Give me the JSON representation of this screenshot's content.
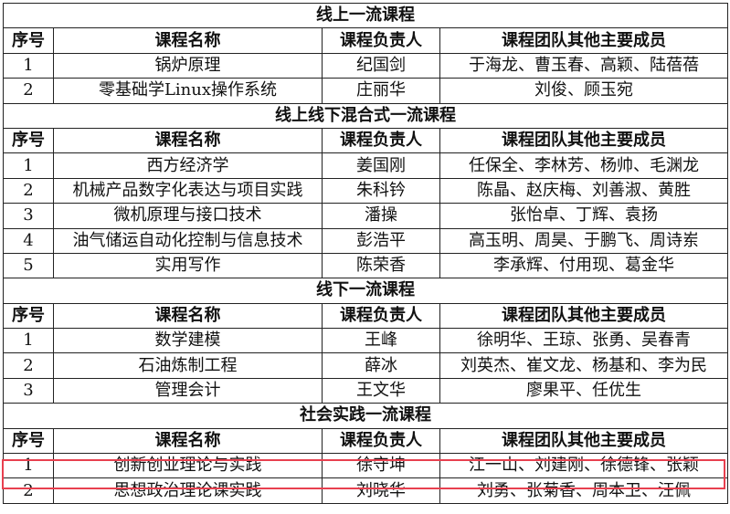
{
  "headers": {
    "no": "序号",
    "name": "课程名称",
    "lead": "课程负责人",
    "members": "课程团队其他主要成员"
  },
  "highlight_color": "#e8404f",
  "sections": [
    {
      "title": "线上一流课程",
      "rows": [
        {
          "no": "1",
          "name": "锅炉原理",
          "lead": "纪国剑",
          "members": "于海龙、曹玉春、高颖、陆蓓蓓"
        },
        {
          "no": "2",
          "name": "零基础学Linux操作系统",
          "lead": "庄丽华",
          "members": "刘俊、顾玉宛"
        }
      ]
    },
    {
      "title": "线上线下混合式一流课程",
      "rows": [
        {
          "no": "1",
          "name": "西方经济学",
          "lead": "姜国刚",
          "members": "任保全、李林芳、杨帅、毛渊龙"
        },
        {
          "no": "2",
          "name": "机械产品数字化表达与项目实践",
          "lead": "朱科钤",
          "members": "陈晶、赵庆梅、刘善淑、黄胜"
        },
        {
          "no": "3",
          "name": "微机原理与接口技术",
          "lead": "潘操",
          "members": "张怡卓、丁辉、袁扬"
        },
        {
          "no": "4",
          "name": "油气储运自动化控制与信息技术",
          "lead": "彭浩平",
          "members": "高玉明、周昊、于鹏飞、周诗岽"
        },
        {
          "no": "5",
          "name": "实用写作",
          "lead": "陈荣香",
          "members": "李承辉、付用现、葛金华"
        }
      ]
    },
    {
      "title": "线下一流课程",
      "rows": [
        {
          "no": "1",
          "name": "数学建模",
          "lead": "王峰",
          "members": "徐明华、王琼、张勇、吴春青"
        },
        {
          "no": "2",
          "name": "石油炼制工程",
          "lead": "薛冰",
          "members": "刘英杰、崔文龙、杨基和、李为民"
        },
        {
          "no": "3",
          "name": "管理会计",
          "lead": "王文华",
          "members": "廖果平、任优生"
        }
      ]
    },
    {
      "title": "社会实践一流课程",
      "rows": [
        {
          "no": "1",
          "name": "创新创业理论与实践",
          "lead": "徐守坤",
          "members": "江一山、刘建刚、徐德锋、张颖"
        },
        {
          "no": "2",
          "name": "思想政治理论课实践",
          "lead": "刘晓华",
          "members": "刘勇、张菊香、周本卫、汪佩"
        }
      ]
    }
  ]
}
